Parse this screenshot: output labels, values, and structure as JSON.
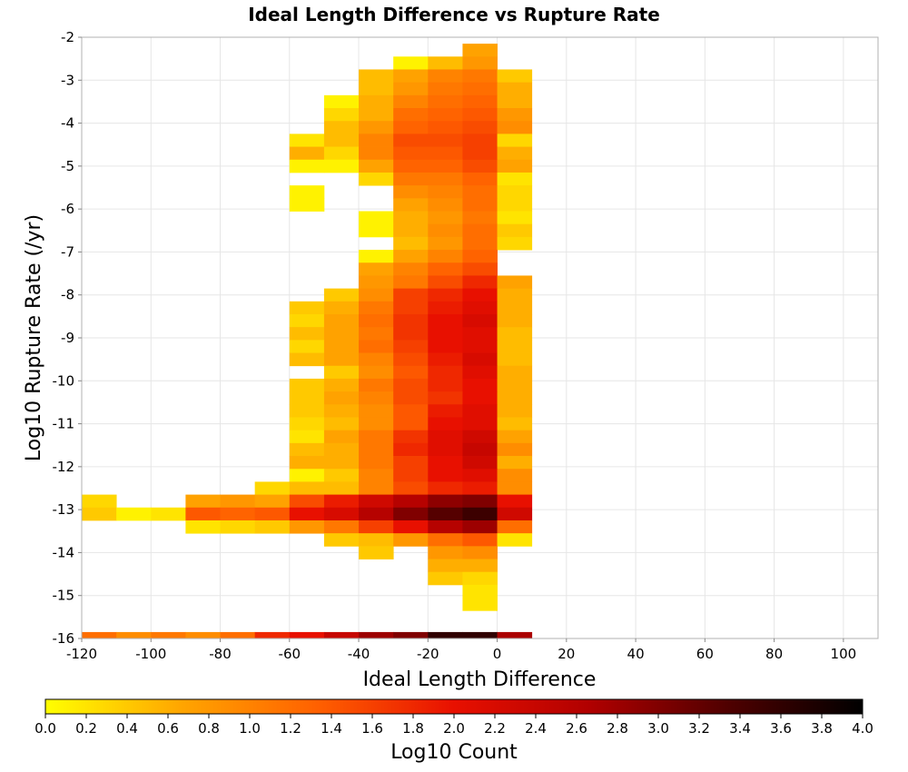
{
  "chart_data": {
    "type": "heatmap",
    "title": "Ideal Length Difference vs Rupture Rate",
    "xlabel": "Ideal Length Difference",
    "ylabel": "Log10 Rupture Rate (/yr)",
    "colorbar_label": "Log10 Count",
    "xlim": [
      -120,
      110
    ],
    "ylim": [
      -16,
      -2
    ],
    "x_ticks": [
      -120,
      -100,
      -80,
      -60,
      -40,
      -20,
      0,
      20,
      40,
      60,
      80,
      100
    ],
    "y_ticks": [
      -2,
      -3,
      -4,
      -5,
      -6,
      -7,
      -8,
      -9,
      -10,
      -11,
      -12,
      -13,
      -14,
      -15,
      -16
    ],
    "color_range": [
      0.0,
      4.0
    ],
    "colorbar_ticks": [
      "0.0",
      "0.2",
      "0.4",
      "0.6",
      "0.8",
      "1.0",
      "1.2",
      "1.4",
      "1.6",
      "1.8",
      "2.0",
      "2.2",
      "2.4",
      "2.6",
      "2.8",
      "3.0",
      "3.2",
      "3.4",
      "3.6",
      "3.8",
      "4.0"
    ],
    "grid": true,
    "colormap": [
      "#ffff00",
      "#ffa500",
      "#ff6000",
      "#e81000",
      "#b00000",
      "#500000",
      "#000000"
    ],
    "x_bin_width": 10,
    "y_bin_height": 0.3,
    "x_bins": [
      -115,
      -105,
      -95,
      -85,
      -75,
      -65,
      -55,
      -45,
      -35,
      -25,
      -15,
      -5,
      5
    ],
    "rows": [
      {
        "y": -2.3,
        "values": [
          null,
          null,
          null,
          null,
          null,
          null,
          null,
          null,
          null,
          null,
          null,
          0.7,
          null
        ]
      },
      {
        "y": -2.6,
        "values": [
          null,
          null,
          null,
          null,
          null,
          null,
          null,
          null,
          null,
          0.1,
          0.5,
          0.8,
          null
        ]
      },
      {
        "y": -2.9,
        "values": [
          null,
          null,
          null,
          null,
          null,
          null,
          null,
          null,
          0.5,
          0.7,
          1.0,
          1.1,
          0.4
        ]
      },
      {
        "y": -3.2,
        "values": [
          null,
          null,
          null,
          null,
          null,
          null,
          null,
          null,
          0.5,
          0.8,
          1.1,
          1.2,
          0.6
        ]
      },
      {
        "y": -3.5,
        "values": [
          null,
          null,
          null,
          null,
          null,
          null,
          null,
          0.1,
          0.6,
          1.0,
          1.2,
          1.3,
          0.6
        ]
      },
      {
        "y": -3.8,
        "values": [
          null,
          null,
          null,
          null,
          null,
          null,
          null,
          0.3,
          0.6,
          1.2,
          1.3,
          1.4,
          0.8
        ]
      },
      {
        "y": -4.1,
        "values": [
          null,
          null,
          null,
          null,
          null,
          null,
          null,
          0.5,
          0.8,
          1.3,
          1.4,
          1.5,
          0.9
        ]
      },
      {
        "y": -4.4,
        "values": [
          null,
          null,
          null,
          null,
          null,
          null,
          0.2,
          0.5,
          1.0,
          1.5,
          1.5,
          1.6,
          0.3
        ]
      },
      {
        "y": -4.7,
        "values": [
          null,
          null,
          null,
          null,
          null,
          null,
          0.6,
          0.3,
          1.0,
          1.4,
          1.4,
          1.6,
          0.6
        ]
      },
      {
        "y": -5.0,
        "values": [
          null,
          null,
          null,
          null,
          null,
          null,
          0.1,
          0.1,
          0.7,
          1.3,
          1.3,
          1.5,
          0.7
        ]
      },
      {
        "y": -5.3,
        "values": [
          null,
          null,
          null,
          null,
          null,
          null,
          null,
          null,
          0.3,
          1.1,
          1.1,
          1.3,
          0.2
        ]
      },
      {
        "y": -5.6,
        "values": [
          null,
          null,
          null,
          null,
          null,
          null,
          0.1,
          null,
          null,
          0.9,
          1.0,
          1.2,
          0.3
        ]
      },
      {
        "y": -5.9,
        "values": [
          null,
          null,
          null,
          null,
          null,
          null,
          0.1,
          null,
          null,
          0.7,
          0.9,
          1.2,
          0.3
        ]
      },
      {
        "y": -6.2,
        "values": [
          null,
          null,
          null,
          null,
          null,
          null,
          null,
          null,
          0.1,
          0.6,
          0.8,
          1.1,
          0.2
        ]
      },
      {
        "y": -6.5,
        "values": [
          null,
          null,
          null,
          null,
          null,
          null,
          null,
          null,
          0.1,
          0.6,
          0.9,
          1.2,
          0.4
        ]
      },
      {
        "y": -6.8,
        "values": [
          null,
          null,
          null,
          null,
          null,
          null,
          null,
          null,
          null,
          0.5,
          0.8,
          1.2,
          0.3
        ]
      },
      {
        "y": -7.1,
        "values": [
          null,
          null,
          null,
          null,
          null,
          null,
          null,
          null,
          0.1,
          0.7,
          1.0,
          1.3,
          null
        ]
      },
      {
        "y": -7.4,
        "values": [
          null,
          null,
          null,
          null,
          null,
          null,
          null,
          null,
          0.7,
          1.0,
          1.3,
          1.5,
          null
        ]
      },
      {
        "y": -7.7,
        "values": [
          null,
          null,
          null,
          null,
          null,
          null,
          null,
          null,
          0.8,
          1.1,
          1.5,
          1.8,
          0.7
        ]
      },
      {
        "y": -8.0,
        "values": [
          null,
          null,
          null,
          null,
          null,
          null,
          null,
          0.4,
          0.9,
          1.6,
          1.8,
          2.0,
          0.6
        ]
      },
      {
        "y": -8.3,
        "values": [
          null,
          null,
          null,
          null,
          null,
          null,
          0.4,
          0.6,
          1.1,
          1.6,
          1.9,
          2.1,
          0.6
        ]
      },
      {
        "y": -8.6,
        "values": [
          null,
          null,
          null,
          null,
          null,
          null,
          0.3,
          0.7,
          1.2,
          1.7,
          2.0,
          2.2,
          0.6
        ]
      },
      {
        "y": -8.9,
        "values": [
          null,
          null,
          null,
          null,
          null,
          null,
          0.5,
          0.7,
          1.1,
          1.7,
          2.0,
          2.1,
          0.5
        ]
      },
      {
        "y": -9.2,
        "values": [
          null,
          null,
          null,
          null,
          null,
          null,
          0.3,
          0.7,
          1.2,
          1.6,
          2.0,
          2.1,
          0.5
        ]
      },
      {
        "y": -9.5,
        "values": [
          null,
          null,
          null,
          null,
          null,
          null,
          0.5,
          0.7,
          1.0,
          1.5,
          1.9,
          2.2,
          0.5
        ]
      },
      {
        "y": -9.8,
        "values": [
          null,
          null,
          null,
          null,
          null,
          null,
          null,
          0.4,
          0.9,
          1.4,
          1.8,
          2.1,
          0.6
        ]
      },
      {
        "y": -10.1,
        "values": [
          null,
          null,
          null,
          null,
          null,
          null,
          0.4,
          0.6,
          1.1,
          1.5,
          1.8,
          2.0,
          0.6
        ]
      },
      {
        "y": -10.4,
        "values": [
          null,
          null,
          null,
          null,
          null,
          null,
          0.4,
          0.7,
          1.0,
          1.5,
          1.7,
          2.0,
          0.6
        ]
      },
      {
        "y": -10.7,
        "values": [
          null,
          null,
          null,
          null,
          null,
          null,
          0.4,
          0.6,
          0.9,
          1.4,
          1.9,
          2.1,
          0.6
        ]
      },
      {
        "y": -11.0,
        "values": [
          null,
          null,
          null,
          null,
          null,
          null,
          0.3,
          0.5,
          0.9,
          1.4,
          2.0,
          2.1,
          0.5
        ]
      },
      {
        "y": -11.3,
        "values": [
          null,
          null,
          null,
          null,
          null,
          null,
          0.2,
          0.7,
          1.1,
          1.7,
          2.1,
          2.3,
          0.7
        ]
      },
      {
        "y": -11.6,
        "values": [
          null,
          null,
          null,
          null,
          null,
          null,
          0.5,
          0.6,
          1.1,
          1.8,
          2.1,
          2.4,
          0.9
        ]
      },
      {
        "y": -11.9,
        "values": [
          null,
          null,
          null,
          null,
          null,
          null,
          0.6,
          0.6,
          1.1,
          1.6,
          2.0,
          2.3,
          0.6
        ]
      },
      {
        "y": -12.2,
        "values": [
          null,
          null,
          null,
          null,
          null,
          null,
          0.1,
          0.4,
          1.0,
          1.6,
          2.0,
          2.1,
          0.9
        ]
      },
      {
        "y": -12.5,
        "values": [
          null,
          null,
          null,
          null,
          null,
          0.3,
          0.5,
          0.5,
          1.0,
          1.5,
          1.8,
          1.9,
          0.9
        ]
      },
      {
        "y": -12.8,
        "values": [
          0.3,
          null,
          null,
          0.7,
          0.8,
          0.7,
          1.5,
          1.9,
          2.3,
          2.6,
          2.9,
          3.0,
          2.0
        ]
      },
      {
        "y": -13.1,
        "values": [
          0.4,
          0.1,
          0.2,
          1.4,
          1.3,
          1.4,
          2.0,
          2.2,
          2.6,
          3.0,
          3.3,
          3.5,
          2.3
        ]
      },
      {
        "y": -13.4,
        "values": [
          null,
          null,
          null,
          0.2,
          0.3,
          0.4,
          0.8,
          1.1,
          1.6,
          2.0,
          2.6,
          2.8,
          1.2
        ]
      },
      {
        "y": -13.7,
        "values": [
          null,
          null,
          null,
          null,
          null,
          null,
          null,
          0.4,
          0.5,
          0.8,
          1.2,
          1.4,
          0.2
        ]
      },
      {
        "y": -14.0,
        "values": [
          null,
          null,
          null,
          null,
          null,
          null,
          null,
          null,
          0.4,
          null,
          0.8,
          0.9,
          null
        ]
      },
      {
        "y": -14.3,
        "values": [
          null,
          null,
          null,
          null,
          null,
          null,
          null,
          null,
          null,
          null,
          0.6,
          0.6,
          null
        ]
      },
      {
        "y": -14.6,
        "values": [
          null,
          null,
          null,
          null,
          null,
          null,
          null,
          null,
          null,
          null,
          0.4,
          0.3,
          null
        ]
      },
      {
        "y": -14.9,
        "values": [
          null,
          null,
          null,
          null,
          null,
          null,
          null,
          null,
          null,
          null,
          null,
          0.2,
          null
        ]
      },
      {
        "y": -15.2,
        "values": [
          null,
          null,
          null,
          null,
          null,
          null,
          null,
          null,
          null,
          null,
          null,
          0.2,
          null
        ]
      },
      {
        "y": -16.0,
        "values": [
          1.2,
          0.9,
          1.1,
          0.9,
          1.2,
          1.8,
          2.0,
          2.4,
          2.8,
          3.0,
          3.6,
          3.6,
          2.7
        ]
      }
    ]
  }
}
